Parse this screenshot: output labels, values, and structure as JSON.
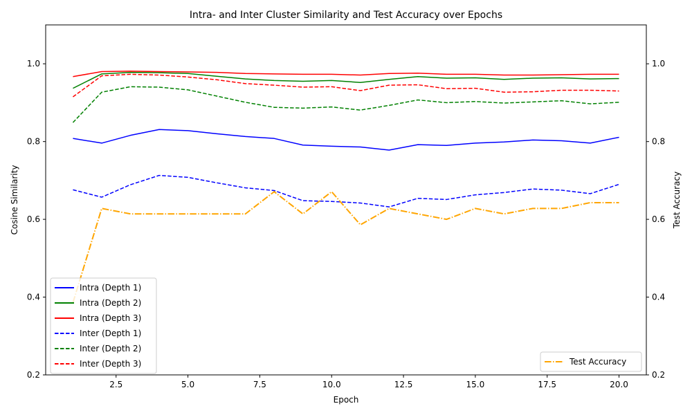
{
  "chart_data": {
    "type": "line",
    "title": "Intra- and Inter Cluster Similarity and Test Accuracy over Epochs",
    "xlabel": "Epoch",
    "ylabel": "Cosine Similarity",
    "y2label": "Test Accuracy",
    "xlim": [
      0.05,
      20.95
    ],
    "ylim": [
      0.2,
      1.1
    ],
    "y2lim": [
      0.2,
      1.1
    ],
    "xticks": [
      2.5,
      5.0,
      7.5,
      10.0,
      12.5,
      15.0,
      17.5,
      20.0
    ],
    "xtick_labels": [
      "2.5",
      "5.0",
      "7.5",
      "10.0",
      "12.5",
      "15.0",
      "17.5",
      "20.0"
    ],
    "yticks": [
      0.2,
      0.4,
      0.6,
      0.8,
      1.0
    ],
    "ytick_labels": [
      "0.2",
      "0.4",
      "0.6",
      "0.8",
      "1.0"
    ],
    "y2ticks": [
      0.2,
      0.4,
      0.6,
      0.8,
      1.0
    ],
    "y2tick_labels": [
      "0.2",
      "0.4",
      "0.6",
      "0.8",
      "1.0"
    ],
    "grid": false,
    "legend_left_position": "lower-left",
    "legend_right_position": "lower-right",
    "x": [
      1,
      2,
      3,
      4,
      5,
      6,
      7,
      8,
      9,
      10,
      11,
      12,
      13,
      14,
      15,
      16,
      17,
      18,
      19,
      20
    ],
    "series": [
      {
        "name": "Intra (Depth 1)",
        "color": "#0000ff",
        "style": "solid",
        "axis": "left",
        "values": [
          0.808,
          0.796,
          0.816,
          0.831,
          0.828,
          0.82,
          0.813,
          0.808,
          0.791,
          0.788,
          0.786,
          0.778,
          0.792,
          0.79,
          0.796,
          0.799,
          0.804,
          0.802,
          0.796,
          0.811
        ]
      },
      {
        "name": "Intra (Depth 2)",
        "color": "#008000",
        "style": "solid",
        "axis": "left",
        "values": [
          0.937,
          0.974,
          0.978,
          0.977,
          0.975,
          0.968,
          0.961,
          0.957,
          0.955,
          0.957,
          0.952,
          0.96,
          0.967,
          0.963,
          0.964,
          0.96,
          0.963,
          0.964,
          0.961,
          0.962
        ]
      },
      {
        "name": "Intra (Depth 3)",
        "color": "#ff0000",
        "style": "solid",
        "axis": "left",
        "values": [
          0.967,
          0.98,
          0.981,
          0.98,
          0.979,
          0.978,
          0.975,
          0.974,
          0.973,
          0.973,
          0.971,
          0.975,
          0.976,
          0.973,
          0.973,
          0.971,
          0.971,
          0.972,
          0.973,
          0.973
        ]
      },
      {
        "name": "Inter (Depth 1)",
        "color": "#0000ff",
        "style": "dashed",
        "axis": "left",
        "values": [
          0.676,
          0.657,
          0.689,
          0.713,
          0.708,
          0.694,
          0.681,
          0.674,
          0.648,
          0.646,
          0.642,
          0.632,
          0.654,
          0.651,
          0.663,
          0.669,
          0.678,
          0.675,
          0.666,
          0.69
        ]
      },
      {
        "name": "Inter (Depth 2)",
        "color": "#008000",
        "style": "dashed",
        "axis": "left",
        "values": [
          0.849,
          0.927,
          0.941,
          0.94,
          0.933,
          0.917,
          0.901,
          0.888,
          0.886,
          0.889,
          0.881,
          0.893,
          0.907,
          0.9,
          0.903,
          0.899,
          0.902,
          0.905,
          0.897,
          0.901
        ]
      },
      {
        "name": "Inter (Depth 3)",
        "color": "#ff0000",
        "style": "dashed",
        "axis": "left",
        "values": [
          0.915,
          0.969,
          0.973,
          0.971,
          0.966,
          0.959,
          0.949,
          0.945,
          0.94,
          0.941,
          0.931,
          0.945,
          0.946,
          0.936,
          0.937,
          0.927,
          0.928,
          0.932,
          0.932,
          0.93
        ]
      },
      {
        "name": "Test Accuracy",
        "color": "#ffa500",
        "style": "dashdot",
        "axis": "right",
        "values": [
          0.386,
          0.628,
          0.614,
          0.614,
          0.614,
          0.614,
          0.614,
          0.671,
          0.614,
          0.671,
          0.586,
          0.628,
          0.614,
          0.6,
          0.628,
          0.614,
          0.628,
          0.628,
          0.643,
          0.643
        ]
      }
    ]
  }
}
